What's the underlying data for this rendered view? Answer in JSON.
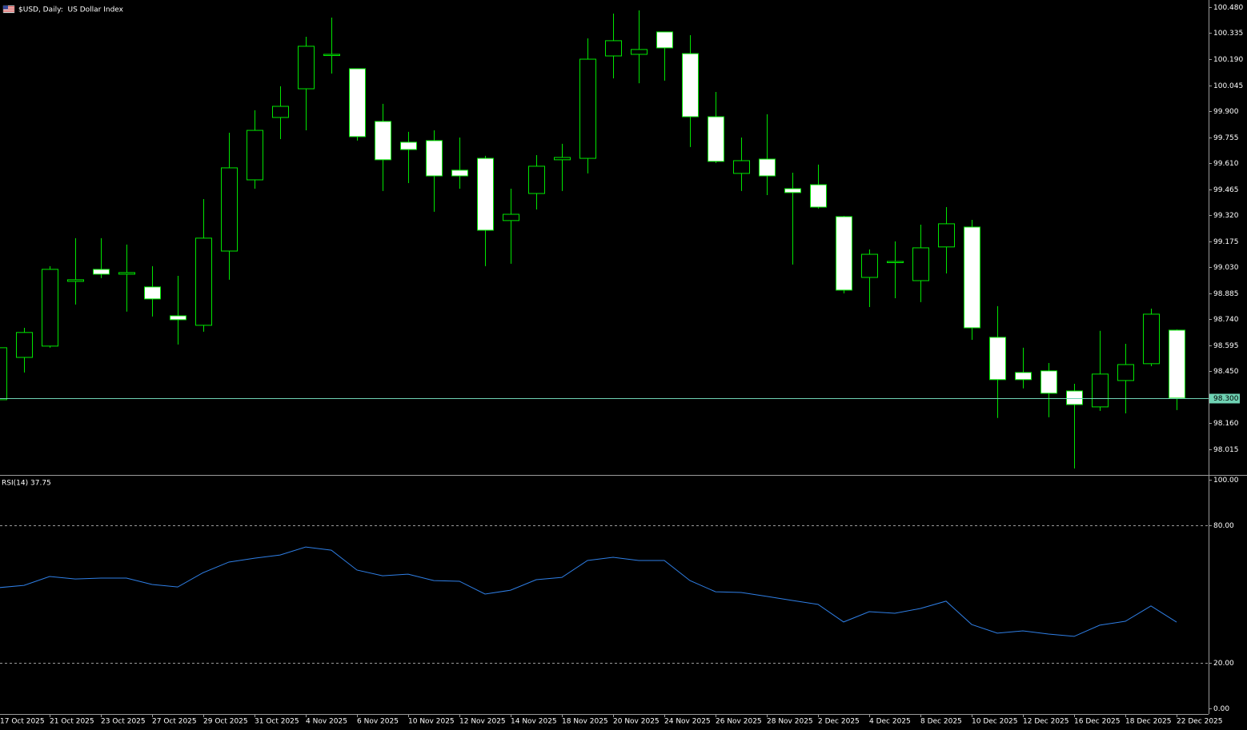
{
  "chart_data": [
    {
      "type": "candlestick",
      "title": "$USD, Daily:  US Dollar Index",
      "categories": [
        "17 Oct 2025",
        null,
        "21 Oct 2025",
        null,
        "23 Oct 2025",
        null,
        "27 Oct 2025",
        null,
        "29 Oct 2025",
        null,
        "31 Oct 2025",
        null,
        "4 Nov 2025",
        null,
        "6 Nov 2025",
        null,
        "10 Nov 2025",
        null,
        "12 Nov 2025",
        null,
        "14 Nov 2025",
        null,
        "18 Nov 2025",
        null,
        "20 Nov 2025",
        null,
        "24 Nov 2025",
        null,
        "26 Nov 2025",
        null,
        "28 Nov 2025",
        null,
        "2 Dec 2025",
        null,
        "4 Dec 2025",
        null,
        "8 Dec 2025",
        null,
        "10 Dec 2025",
        null,
        "12 Dec 2025",
        null,
        "16 Dec 2025",
        null,
        "18 Dec 2025",
        null,
        "22 Dec 2025"
      ],
      "series": {
        "open": [
          98.291,
          98.527,
          98.59,
          98.951,
          99.018,
          98.991,
          98.92,
          98.759,
          98.706,
          99.12,
          99.517,
          99.865,
          100.025,
          100.213,
          100.137,
          99.843,
          99.727,
          99.736,
          99.571,
          99.637,
          99.29,
          99.441,
          99.629,
          99.637,
          100.208,
          100.217,
          100.342,
          100.221,
          99.869,
          99.553,
          99.633,
          99.468,
          99.49,
          99.312,
          98.973,
          99.058,
          98.955,
          99.143,
          99.254,
          98.639,
          98.443,
          98.452,
          98.34,
          98.251,
          98.398,
          98.492,
          98.679
        ],
        "high": [
          98.581,
          98.692,
          99.036,
          99.192,
          99.192,
          99.156,
          99.036,
          98.982,
          99.41,
          99.78,
          99.905,
          100.039,
          100.315,
          100.422,
          100.137,
          99.941,
          99.785,
          99.793,
          99.753,
          99.651,
          99.468,
          99.655,
          99.718,
          100.306,
          100.444,
          100.462,
          100.342,
          100.324,
          100.007,
          99.753,
          99.883,
          99.557,
          99.602,
          99.316,
          99.129,
          99.174,
          99.267,
          99.365,
          99.294,
          98.813,
          98.581,
          98.496,
          98.38,
          98.675,
          98.603,
          98.799,
          98.683
        ],
        "low": [
          98.291,
          98.443,
          98.581,
          98.822,
          98.969,
          98.782,
          98.755,
          98.599,
          98.67,
          98.96,
          99.468,
          99.744,
          99.793,
          100.11,
          99.736,
          99.455,
          99.499,
          99.339,
          99.468,
          99.036,
          99.049,
          99.352,
          99.455,
          99.553,
          100.083,
          100.056,
          100.07,
          99.7,
          99.611,
          99.455,
          99.432,
          99.045,
          99.357,
          98.884,
          98.808,
          98.857,
          98.835,
          98.995,
          98.625,
          98.189,
          98.354,
          98.193,
          97.908,
          98.229,
          98.215,
          98.478,
          98.233
        ],
        "close": [
          98.581,
          98.666,
          99.018,
          98.96,
          98.991,
          99.0,
          98.853,
          98.737,
          99.192,
          99.584,
          99.793,
          99.927,
          100.262,
          100.217,
          99.758,
          99.629,
          99.686,
          99.539,
          99.539,
          99.236,
          99.325,
          99.593,
          99.642,
          100.19,
          100.293,
          100.244,
          100.253,
          99.869,
          99.62,
          99.624,
          99.539,
          99.446,
          99.365,
          98.902,
          99.102,
          99.062,
          99.138,
          99.272,
          98.692,
          98.403,
          98.403,
          98.327,
          98.264,
          98.434,
          98.487,
          98.768,
          98.3
        ]
      },
      "up_color": "#000000",
      "down_color": "#ffffff",
      "wick_color": "#00e600",
      "ylim": [
        97.876,
        100.52
      ],
      "yticks": [
        {
          "value": 100.48,
          "label": "100.480"
        },
        100.335,
        {
          "value": 100.19,
          "label": "100.190"
        },
        100.045,
        {
          "value": 99.9,
          "label": "99.900"
        },
        99.755,
        {
          "value": 99.61,
          "label": "99.610"
        },
        99.465,
        {
          "value": 99.32,
          "label": "99.320"
        },
        99.175,
        {
          "value": 99.03,
          "label": "99.030"
        },
        98.885,
        {
          "value": 98.74,
          "label": "98.740"
        },
        98.595,
        {
          "value": 98.45,
          "label": "98.450"
        },
        {
          "value": 98.16,
          "label": "98.160"
        },
        98.015
      ],
      "price_line": {
        "value": 98.3,
        "label": "98.300",
        "color": "#6fd3b4"
      }
    },
    {
      "type": "line",
      "title": "RSI(14)",
      "series": [
        {
          "color": "#2f7fe6",
          "values": [
            52.8,
            53.8,
            57.7,
            56.6,
            57.0,
            57.0,
            54.2,
            53.1,
            59.4,
            64.0,
            65.7,
            67.1,
            70.6,
            69.2,
            60.5,
            58.0,
            58.7,
            55.9,
            55.6,
            50.0,
            51.7,
            56.3,
            57.3,
            64.7,
            66.1,
            64.7,
            64.7,
            55.9,
            51.0,
            50.7,
            49.0,
            47.2,
            45.5,
            37.8,
            42.3,
            41.6,
            43.7,
            46.9,
            36.7,
            32.9,
            33.9,
            32.5,
            31.5,
            36.4,
            38.1,
            44.8,
            37.75
          ]
        }
      ],
      "ylim": [
        0,
        100
      ],
      "yticks": [
        {
          "value": 100,
          "label": "100.00"
        },
        {
          "value": 80,
          "label": "80.00"
        },
        {
          "value": 20,
          "label": "20.00"
        },
        {
          "value": 0,
          "label": "0.00"
        }
      ]
    }
  ]
}
